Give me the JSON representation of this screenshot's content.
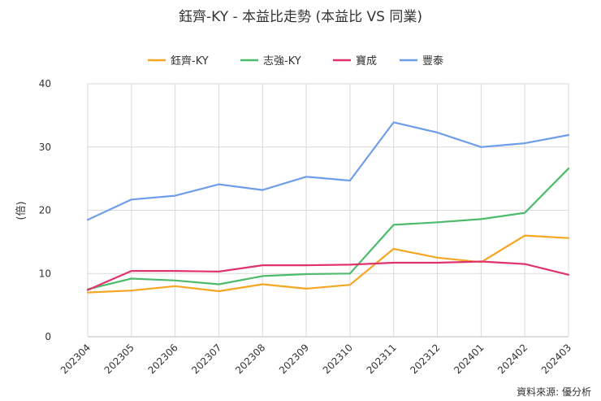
{
  "chart_data": {
    "type": "line",
    "title": "鈺齊-KY - 本益比走勢 (本益比 VS 同業)",
    "ylabel": "(倍)",
    "xlabel": "",
    "ylim": [
      0,
      40
    ],
    "yticks": [
      0,
      10,
      20,
      30,
      40
    ],
    "grid": true,
    "legend_position": "top",
    "categories": [
      "202304",
      "202305",
      "202306",
      "202307",
      "202308",
      "202309",
      "202310",
      "202311",
      "202312",
      "202401",
      "202402",
      "202403"
    ],
    "series": [
      {
        "name": "鈺齊-KY",
        "color": "#f5a623",
        "values": [
          7.0,
          7.3,
          8.0,
          7.2,
          8.3,
          7.6,
          8.2,
          13.9,
          12.5,
          11.8,
          16.0,
          15.6
        ]
      },
      {
        "name": "志強-KY",
        "color": "#4cbb6c",
        "values": [
          7.5,
          9.2,
          8.9,
          8.3,
          9.6,
          9.9,
          10.0,
          17.7,
          18.1,
          18.6,
          19.6,
          26.6
        ]
      },
      {
        "name": "寶成",
        "color": "#e0336e",
        "values": [
          7.4,
          10.4,
          10.4,
          10.3,
          11.3,
          11.3,
          11.4,
          11.7,
          11.7,
          11.9,
          11.5,
          9.8
        ]
      },
      {
        "name": "豐泰",
        "color": "#6e9eeb",
        "values": [
          18.5,
          21.7,
          22.3,
          24.1,
          23.2,
          25.3,
          24.7,
          33.9,
          32.3,
          30.0,
          30.6,
          31.9
        ]
      }
    ]
  },
  "source": "資料來源: 優分析"
}
